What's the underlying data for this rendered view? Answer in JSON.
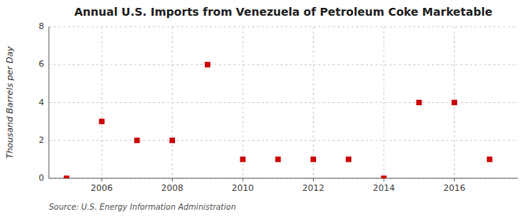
{
  "chart_data": {
    "type": "scatter",
    "title": "Annual U.S. Imports from Venezuela of Petroleum Coke Marketable",
    "ylabel": "Thousand Barrels per Day",
    "source": "Source: U.S. Energy Information Administration",
    "x": [
      2005,
      2006,
      2007,
      2008,
      2009,
      2010,
      2011,
      2012,
      2013,
      2014,
      2015,
      2016,
      2017
    ],
    "values": [
      0,
      3,
      2,
      2,
      6,
      1,
      1,
      1,
      1,
      0,
      4,
      4,
      1
    ],
    "xlim": [
      2004.5,
      2017.8
    ],
    "xticks": [
      2006,
      2008,
      2010,
      2012,
      2014,
      2016
    ],
    "ylim": [
      0,
      8
    ],
    "yticks": [
      0,
      2,
      4,
      6,
      8
    ],
    "color": "#cc0000",
    "marker": "square",
    "grid": true
  }
}
